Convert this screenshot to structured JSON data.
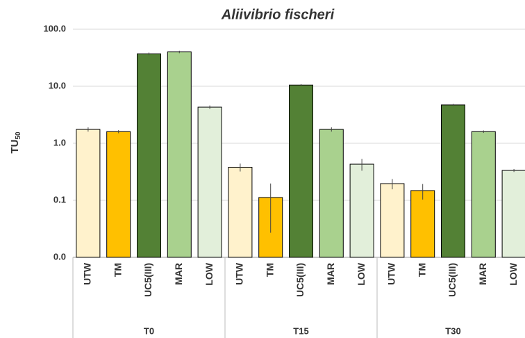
{
  "chart_data": {
    "type": "bar",
    "title": "Aliivibrio fischeri",
    "ylabel": {
      "text": "TU",
      "subscript": "50"
    },
    "log_scale": true,
    "grid": true,
    "ylim": [
      0.01,
      100
    ],
    "yticks": [
      {
        "value": 0.01,
        "label": "0.0"
      },
      0.1,
      {
        "value": 1,
        "label": "1.0"
      },
      {
        "value": 10,
        "label": "10.0"
      },
      {
        "value": 100,
        "label": "100.0"
      }
    ],
    "categories": [
      "UTW",
      "TM",
      "UC5(III)",
      "MAR",
      "LOW"
    ],
    "colors": [
      "#fff2cc",
      "#ffc000",
      "#538135",
      "#a9d18e",
      "#e2efda"
    ],
    "groups": [
      {
        "name": "T0",
        "values": [
          1.75,
          1.6,
          37,
          40,
          4.3
        ],
        "errors": [
          0.15,
          0.1,
          2,
          2,
          0.3
        ]
      },
      {
        "name": "T15",
        "values": [
          0.38,
          0.112,
          10.5,
          1.75,
          0.43
        ],
        "errors": [
          0.06,
          0.085,
          0.4,
          0.15,
          0.1
        ]
      },
      {
        "name": "T30",
        "values": [
          0.196,
          0.148,
          4.7,
          1.6,
          0.334
        ],
        "errors": [
          0.04,
          0.045,
          0.2,
          0.08,
          0.02
        ]
      }
    ]
  }
}
